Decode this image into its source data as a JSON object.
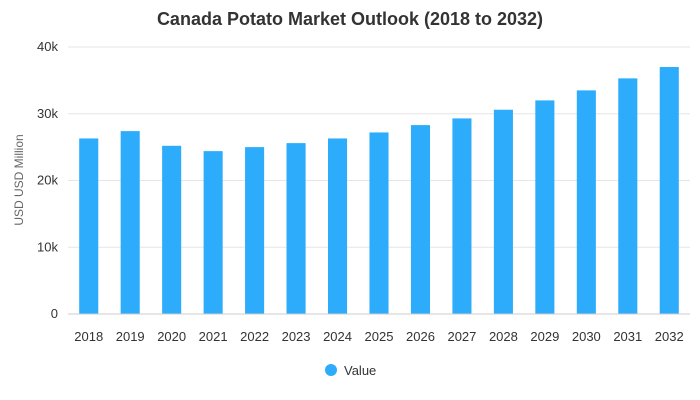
{
  "chart_data": {
    "type": "bar",
    "title": "Canada Potato Market Outlook (2018 to 2032)",
    "ylabel": "USD USD Million",
    "xlabel": "",
    "categories": [
      "2018",
      "2019",
      "2020",
      "2021",
      "2022",
      "2023",
      "2024",
      "2025",
      "2026",
      "2027",
      "2028",
      "2029",
      "2030",
      "2031",
      "2032"
    ],
    "series": [
      {
        "name": "Value",
        "color": "#2eacfc",
        "values": [
          26300,
          27400,
          25200,
          24400,
          25000,
          25600,
          26300,
          27200,
          28300,
          29300,
          30600,
          32000,
          33500,
          35300,
          37000
        ]
      }
    ],
    "ylim": [
      0,
      40000
    ],
    "yticks": [
      0,
      10000,
      20000,
      30000,
      40000
    ],
    "ytick_labels": [
      "0",
      "10k",
      "20k",
      "30k",
      "40k"
    ],
    "grid": true,
    "legend_position": "bottom-center"
  }
}
